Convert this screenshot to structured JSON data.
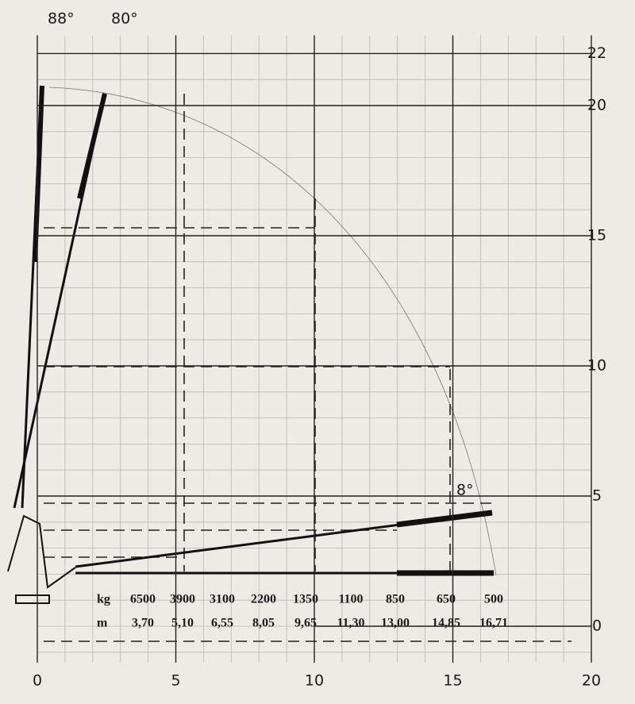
{
  "angle_labels": [
    "88°",
    "80°",
    "8°"
  ],
  "x_axis": {
    "ticks": [
      0,
      5,
      10,
      15,
      20
    ]
  },
  "y_axis": {
    "ticks": [
      0,
      5,
      10,
      15,
      20,
      22
    ]
  },
  "load_table": {
    "rows": [
      {
        "unit": "kg",
        "values": [
          6500,
          3900,
          3100,
          2200,
          1350,
          1100,
          850,
          650,
          500
        ]
      },
      {
        "unit": "m",
        "values": [
          "3,70",
          "5,10",
          "6,55",
          "8,05",
          "9,65",
          "11,30",
          "13,00",
          "14,85",
          "16,71"
        ]
      }
    ]
  }
}
